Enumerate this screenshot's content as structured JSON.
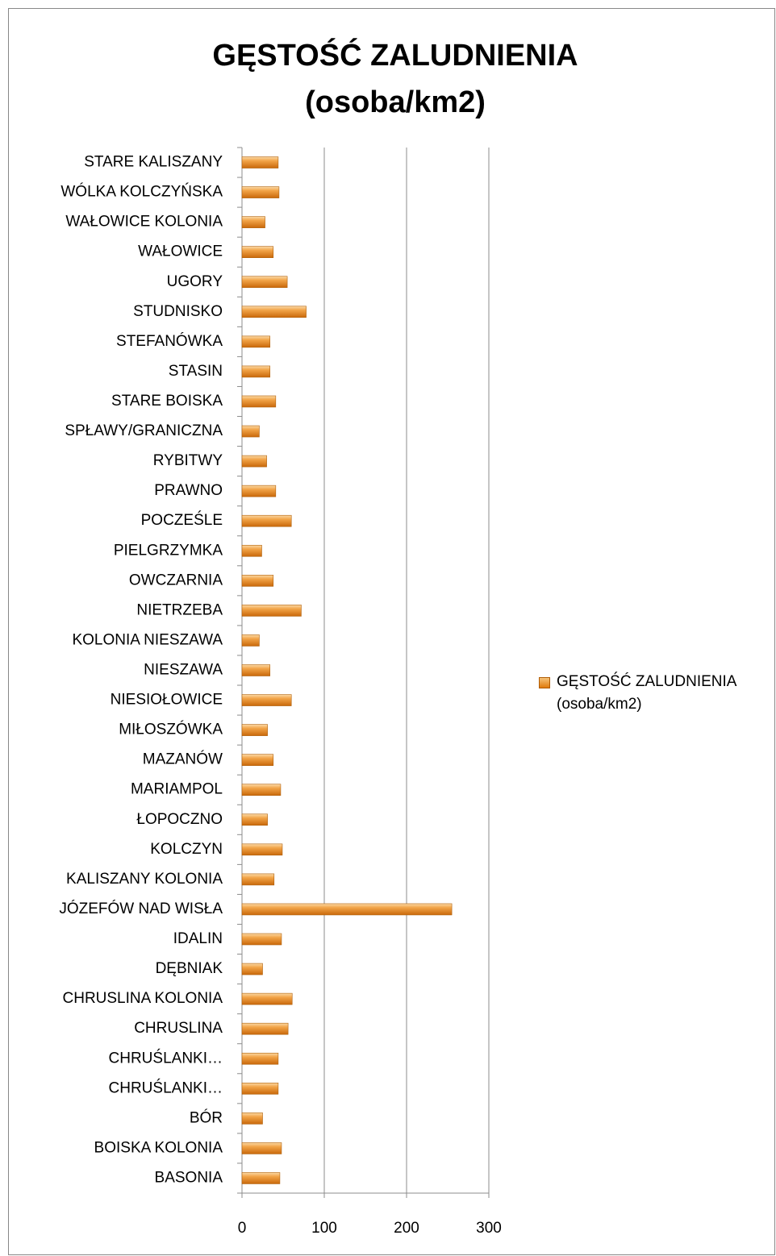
{
  "chart_data": {
    "type": "hbar",
    "title": "GĘSTOŚĆ ZALUDNIENIA (osoba/km2)",
    "categories": [
      "BASONIA",
      "BOISKA KOLONIA",
      "BÓR",
      "CHRUŚLANKI…",
      "CHRUŚLANKI…",
      "CHRUSLINA",
      "CHRUSLINA KOLONIA",
      "DĘBNIAK",
      "IDALIN",
      "JÓZEFÓW NAD WISŁA",
      "KALISZANY KOLONIA",
      "KOLCZYN",
      "ŁOPOCZNO",
      "MARIAMPOL",
      "MAZANÓW",
      "MIŁOSZÓWKA",
      "NIESIOŁOWICE",
      "NIESZAWA",
      "KOLONIA NIESZAWA",
      "NIETRZEBA",
      "OWCZARNIA",
      "PIELGRZYMKA",
      "POCZEŚLE",
      "PRAWNO",
      "RYBITWY",
      "SPŁAWY/GRANICZNA",
      "STARE BOISKA",
      "STASIN",
      "STEFANÓWKA",
      "STUDNISKO",
      "UGORY",
      "WAŁOWICE",
      "WAŁOWICE KOLONIA",
      "WÓLKA KOLCZYŃSKA",
      "STARE KALISZANY"
    ],
    "series": [
      {
        "name": "GĘSTOŚĆ ZALUDNIENIA (osoba/km2)",
        "color": "#e8881c",
        "values": [
          46,
          48,
          25,
          44,
          44,
          56,
          61,
          25,
          48,
          255,
          39,
          49,
          31,
          47,
          38,
          31,
          60,
          34,
          21,
          72,
          38,
          24,
          60,
          41,
          30,
          21,
          41,
          34,
          34,
          78,
          55,
          38,
          28,
          45,
          44
        ]
      }
    ],
    "xlim": [
      0,
      300
    ],
    "xticks": [
      0,
      100,
      200,
      300
    ],
    "grid": true,
    "legend": "right"
  }
}
